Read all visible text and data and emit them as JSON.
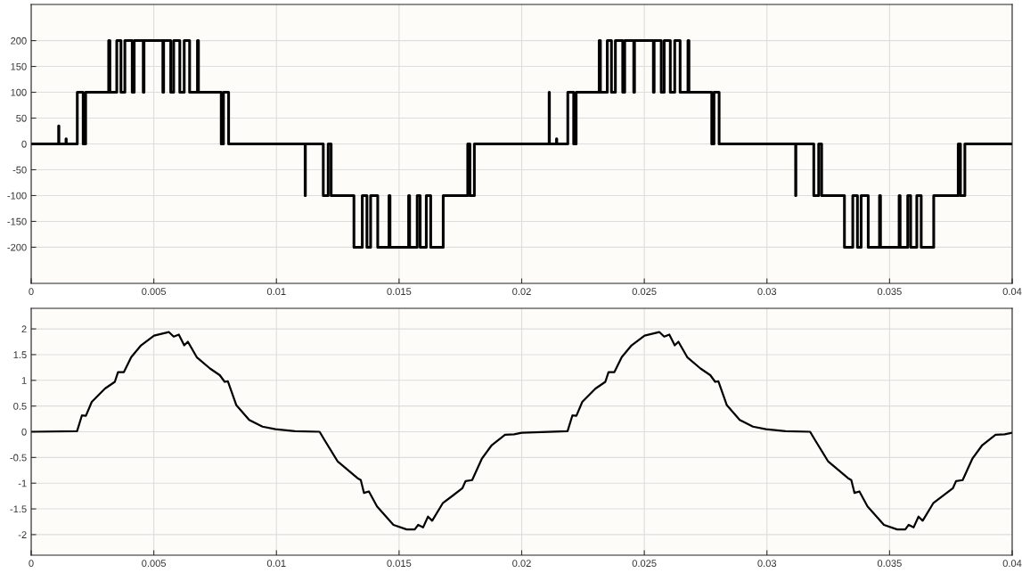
{
  "chart_data": [
    {
      "type": "step",
      "color": "#000000",
      "line_style": "solid",
      "grid": true,
      "x": [
        0,
        0.00112,
        0.00113,
        0.00142,
        0.00143,
        0.00188,
        0.00212,
        0.00222,
        0.00316,
        0.00321,
        0.00349,
        0.00366,
        0.00382,
        0.00412,
        0.0042,
        0.00457,
        0.0046,
        0.00537,
        0.0054,
        0.00569,
        0.00581,
        0.00606,
        0.00624,
        0.00646,
        0.00678,
        0.00682,
        0.00775,
        0.00784,
        0.00805,
        0.01117,
        0.01118,
        0.01191,
        0.01211,
        0.01223,
        0.01316,
        0.0135,
        0.01369,
        0.01384,
        0.01413,
        0.01459,
        0.01463,
        0.01539,
        0.01543,
        0.01574,
        0.01586,
        0.01611,
        0.01629,
        0.0168,
        0.0178,
        0.01789,
        0.01807,
        0.02,
        0.02112,
        0.02113,
        0.02142,
        0.02143,
        0.02188,
        0.02212,
        0.02222,
        0.02316,
        0.02321,
        0.02349,
        0.02366,
        0.02382,
        0.02412,
        0.0242,
        0.02457,
        0.0246,
        0.02537,
        0.0254,
        0.02569,
        0.02581,
        0.02606,
        0.02624,
        0.02646,
        0.02678,
        0.02682,
        0.02775,
        0.02784,
        0.02805,
        0.03117,
        0.03118,
        0.03191,
        0.03211,
        0.03223,
        0.03316,
        0.0335,
        0.03369,
        0.03384,
        0.03413,
        0.03459,
        0.03463,
        0.03539,
        0.03543,
        0.03574,
        0.03586,
        0.03611,
        0.03629,
        0.0368,
        0.0378,
        0.03789,
        0.03807,
        0.04
      ],
      "values": [
        0,
        35,
        0,
        10,
        0,
        100,
        0,
        100,
        200,
        100,
        200,
        100,
        200,
        100,
        200,
        100,
        200,
        100,
        200,
        100,
        200,
        100,
        200,
        100,
        200,
        100,
        0,
        100,
        0,
        -100,
        0,
        -100,
        0,
        -100,
        -200,
        -100,
        -200,
        -100,
        -200,
        -100,
        -200,
        -100,
        -200,
        -100,
        -200,
        -100,
        -200,
        -100,
        0,
        -100,
        0,
        0,
        100,
        0,
        10,
        0,
        100,
        0,
        100,
        200,
        100,
        200,
        100,
        200,
        100,
        200,
        100,
        200,
        100,
        200,
        100,
        200,
        100,
        200,
        100,
        200,
        100,
        0,
        100,
        0,
        -100,
        0,
        -100,
        0,
        -100,
        -200,
        -100,
        -200,
        -100,
        -200,
        -100,
        -200,
        -100,
        -200,
        -100,
        -200,
        -100,
        -200,
        -100,
        0,
        -100,
        0,
        0
      ],
      "xlim": [
        0,
        0.04
      ],
      "ylim": [
        -270,
        270
      ],
      "xticks": [
        0,
        0.005,
        0.01,
        0.015,
        0.02,
        0.025,
        0.03,
        0.035,
        0.04
      ],
      "yticks": [
        -200,
        -150,
        -100,
        -50,
        0,
        50,
        100,
        150,
        200
      ]
    },
    {
      "type": "line",
      "color": "#000000",
      "line_style": "solid",
      "grid": true,
      "x": [
        0,
        0.00187,
        0.00207,
        0.00223,
        0.00247,
        0.00301,
        0.00341,
        0.00354,
        0.00378,
        0.00408,
        0.00448,
        0.00501,
        0.00561,
        0.00581,
        0.00602,
        0.00624,
        0.00639,
        0.00675,
        0.00729,
        0.00769,
        0.00789,
        0.00802,
        0.00836,
        0.00889,
        0.00943,
        0.00996,
        0.01076,
        0.01176,
        0.01196,
        0.0125,
        0.0133,
        0.01344,
        0.01357,
        0.01377,
        0.0141,
        0.01477,
        0.01531,
        0.01564,
        0.01578,
        0.01598,
        0.01618,
        0.01635,
        0.01678,
        0.01758,
        0.01771,
        0.01798,
        0.01838,
        0.01878,
        0.01932,
        0.01969,
        0.02,
        0.02187,
        0.02207,
        0.02223,
        0.02247,
        0.02301,
        0.02341,
        0.02354,
        0.02378,
        0.02408,
        0.02448,
        0.02501,
        0.02561,
        0.02581,
        0.02602,
        0.02624,
        0.02639,
        0.02675,
        0.02729,
        0.02769,
        0.02789,
        0.02802,
        0.02836,
        0.02889,
        0.02943,
        0.02996,
        0.03076,
        0.03176,
        0.03196,
        0.0325,
        0.0333,
        0.03344,
        0.03357,
        0.03377,
        0.0341,
        0.03477,
        0.03531,
        0.03564,
        0.03578,
        0.03598,
        0.03618,
        0.03635,
        0.03678,
        0.03758,
        0.03771,
        0.03798,
        0.03838,
        0.03878,
        0.03932,
        0.03969,
        0.04
      ],
      "values": [
        0,
        0.01,
        0.32,
        0.31,
        0.58,
        0.84,
        0.97,
        1.16,
        1.16,
        1.45,
        1.68,
        1.87,
        1.94,
        1.85,
        1.89,
        1.68,
        1.75,
        1.45,
        1.23,
        1.1,
        0.97,
        0.98,
        0.52,
        0.23,
        0.1,
        0.05,
        0.01,
        0,
        -0.16,
        -0.58,
        -0.9,
        -0.94,
        -1.19,
        -1.16,
        -1.45,
        -1.81,
        -1.9,
        -1.9,
        -1.81,
        -1.86,
        -1.65,
        -1.73,
        -1.39,
        -1.1,
        -0.96,
        -0.94,
        -0.52,
        -0.26,
        -0.06,
        -0.05,
        -0.02,
        0.01,
        0.32,
        0.31,
        0.58,
        0.84,
        0.97,
        1.16,
        1.16,
        1.45,
        1.68,
        1.87,
        1.94,
        1.85,
        1.89,
        1.68,
        1.75,
        1.45,
        1.23,
        1.1,
        0.97,
        0.98,
        0.52,
        0.23,
        0.1,
        0.05,
        0.01,
        0,
        -0.16,
        -0.58,
        -0.9,
        -0.94,
        -1.19,
        -1.16,
        -1.45,
        -1.81,
        -1.9,
        -1.9,
        -1.81,
        -1.86,
        -1.65,
        -1.73,
        -1.39,
        -1.1,
        -0.96,
        -0.94,
        -0.52,
        -0.26,
        -0.06,
        -0.05,
        -0.02
      ],
      "xlim": [
        0,
        0.04
      ],
      "ylim": [
        -2.4,
        2.4
      ],
      "xticks": [
        0,
        0.005,
        0.01,
        0.015,
        0.02,
        0.025,
        0.03,
        0.035,
        0.04
      ],
      "yticks": [
        -2,
        -1.5,
        -1,
        -0.5,
        0,
        0.5,
        1,
        1.5,
        2
      ]
    }
  ]
}
